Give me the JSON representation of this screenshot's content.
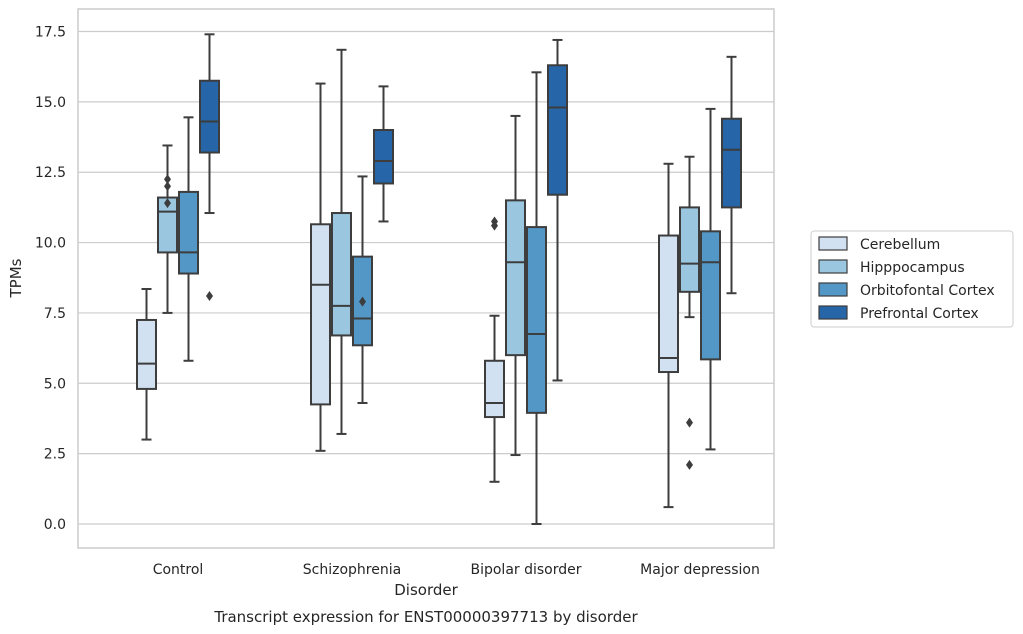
{
  "chart_data": {
    "type": "box",
    "caption": "Transcript expression for ENST00000397713 by disorder",
    "xlabel": "Disorder",
    "ylabel": "TPMs",
    "ylim": [
      -0.8,
      18.3
    ],
    "yticks": [
      "0.0",
      "2.5",
      "5.0",
      "7.5",
      "10.0",
      "12.5",
      "15.0",
      "17.5"
    ],
    "grid": "horizontal",
    "legend_position": "right",
    "categories": [
      "Control",
      "Schizophrenia",
      "Bipolar disorder",
      "Major depression"
    ],
    "series": [
      {
        "name": "Cerebellum",
        "color": "#d1e1f1",
        "boxes": [
          {
            "whislo": 3.0,
            "q1": 4.8,
            "med": 5.7,
            "q3": 7.25,
            "whishi": 8.35,
            "fliers": []
          },
          {
            "whislo": 2.6,
            "q1": 4.25,
            "med": 8.5,
            "q3": 10.65,
            "whishi": 15.65,
            "fliers": []
          },
          {
            "whislo": 1.5,
            "q1": 3.8,
            "med": 4.3,
            "q3": 5.8,
            "whishi": 7.4,
            "fliers": [
              10.6,
              10.75
            ]
          },
          {
            "whislo": 0.6,
            "q1": 5.4,
            "med": 5.9,
            "q3": 10.25,
            "whishi": 12.8,
            "fliers": []
          }
        ]
      },
      {
        "name": "Hipppocampus",
        "color": "#9ac6e0",
        "boxes": [
          {
            "whislo": 7.5,
            "q1": 9.65,
            "med": 11.1,
            "q3": 11.6,
            "whishi": 13.45,
            "fliers": [
              11.4,
              12.0,
              12.25
            ]
          },
          {
            "whislo": 3.2,
            "q1": 6.7,
            "med": 7.75,
            "q3": 11.05,
            "whishi": 16.85,
            "fliers": []
          },
          {
            "whislo": 2.45,
            "q1": 6.0,
            "med": 9.3,
            "q3": 11.5,
            "whishi": 14.5,
            "fliers": []
          },
          {
            "whislo": 7.35,
            "q1": 8.25,
            "med": 9.25,
            "q3": 11.25,
            "whishi": 13.05,
            "fliers": [
              2.1,
              3.6
            ]
          }
        ]
      },
      {
        "name": "Orbitofontal Cortex",
        "color": "#5297c6",
        "boxes": [
          {
            "whislo": 5.8,
            "q1": 8.9,
            "med": 9.65,
            "q3": 11.8,
            "whishi": 14.45,
            "fliers": []
          },
          {
            "whislo": 4.3,
            "q1": 6.35,
            "med": 7.3,
            "q3": 9.5,
            "whishi": 12.35,
            "fliers": [
              7.9
            ]
          },
          {
            "whislo": 0.0,
            "q1": 3.95,
            "med": 6.75,
            "q3": 10.55,
            "whishi": 16.05,
            "fliers": []
          },
          {
            "whislo": 2.65,
            "q1": 5.85,
            "med": 9.3,
            "q3": 10.4,
            "whishi": 14.75,
            "fliers": []
          }
        ]
      },
      {
        "name": "Prefrontal Cortex",
        "color": "#2565a8",
        "boxes": [
          {
            "whislo": 11.05,
            "q1": 13.2,
            "med": 14.3,
            "q3": 15.75,
            "whishi": 17.4,
            "fliers": [
              8.1
            ]
          },
          {
            "whislo": 10.75,
            "q1": 12.1,
            "med": 12.9,
            "q3": 14.0,
            "whishi": 15.55,
            "fliers": []
          },
          {
            "whislo": 5.1,
            "q1": 11.7,
            "med": 14.8,
            "q3": 16.3,
            "whishi": 17.2,
            "fliers": []
          },
          {
            "whislo": 8.2,
            "q1": 11.25,
            "med": 13.3,
            "q3": 14.4,
            "whishi": 16.6,
            "fliers": []
          }
        ]
      }
    ]
  }
}
